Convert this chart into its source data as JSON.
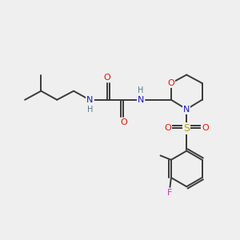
{
  "bg_color": "#efefef",
  "bond_color": "#3a3a3a",
  "atom_colors": {
    "O": "#ee1100",
    "N": "#1a1acc",
    "S": "#bbaa00",
    "F": "#cc33aa",
    "H_label": "#557788"
  },
  "bond_width": 1.4,
  "figsize": [
    3.0,
    3.0
  ],
  "dpi": 100,
  "xlim": [
    0,
    10
  ],
  "ylim": [
    0,
    10
  ]
}
